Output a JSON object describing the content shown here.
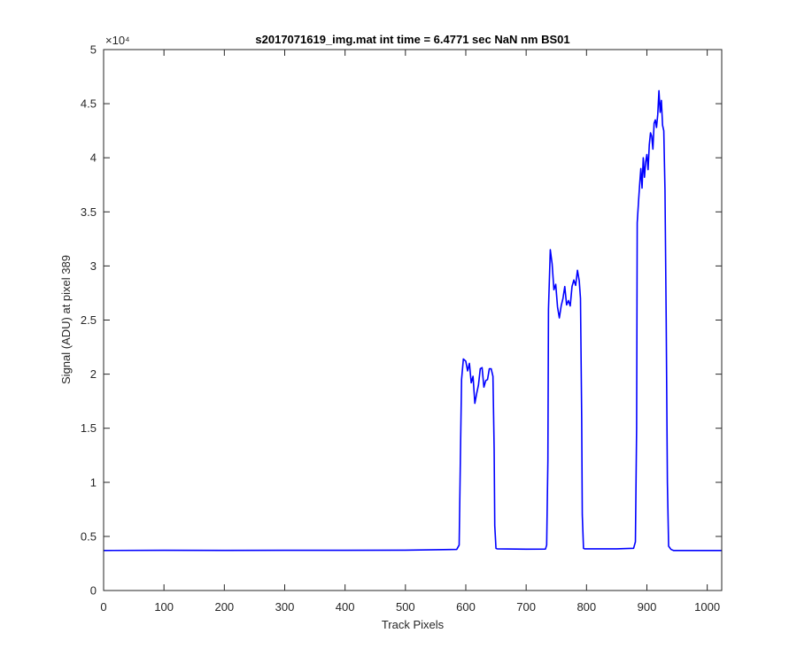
{
  "chart_data": {
    "type": "line",
    "title": "s2017071619_img.mat int time = 6.4771 sec  NaN nm BS01",
    "xlabel": "Track Pixels",
    "ylabel": "Signal (ADU) at pixel 389",
    "y_exponent_label": "×10⁴",
    "xlim": [
      0,
      1024
    ],
    "ylim": [
      0,
      50000
    ],
    "x_ticks": [
      0,
      100,
      200,
      300,
      400,
      500,
      600,
      700,
      800,
      900,
      1000
    ],
    "x_tick_labels": [
      "0",
      "100",
      "200",
      "300",
      "400",
      "500",
      "600",
      "700",
      "800",
      "900",
      "1000"
    ],
    "y_ticks": [
      0,
      5000,
      10000,
      15000,
      20000,
      25000,
      30000,
      35000,
      40000,
      45000,
      50000
    ],
    "y_tick_labels": [
      "0",
      "0.5",
      "1",
      "1.5",
      "2",
      "2.5",
      "3",
      "3.5",
      "4",
      "4.5",
      "5"
    ],
    "grid": false,
    "box": true,
    "line_color": "#0000ff",
    "series": [
      {
        "x": [
          0,
          100,
          200,
          300,
          400,
          500,
          585,
          589,
          591,
          593,
          596,
          600,
          603,
          606,
          609,
          612,
          615,
          618,
          621,
          624,
          627,
          630,
          633,
          636,
          639,
          642,
          645,
          647,
          648,
          650,
          652,
          700,
          732,
          734,
          736,
          737,
          740,
          743,
          746,
          749,
          752,
          755,
          758,
          761,
          764,
          767,
          770,
          773,
          776,
          779,
          782,
          785,
          788,
          790,
          792,
          793,
          795,
          797,
          850,
          878,
          881,
          883,
          884,
          886,
          888,
          890,
          892,
          894,
          896,
          898,
          900,
          902,
          904,
          906,
          908,
          910,
          912,
          914,
          916,
          918,
          920,
          922,
          924,
          926,
          928,
          930,
          932,
          934,
          936,
          938,
          940,
          942,
          944,
          946,
          990,
          1024
        ],
        "y": [
          3700,
          3720,
          3710,
          3720,
          3720,
          3730,
          3800,
          4200,
          12000,
          19500,
          21400,
          21200,
          20300,
          21000,
          19200,
          19800,
          17300,
          18200,
          19000,
          20500,
          20600,
          18800,
          19400,
          19500,
          20500,
          20500,
          19800,
          13000,
          6000,
          3900,
          3850,
          3820,
          3830,
          4200,
          12000,
          26000,
          31500,
          30200,
          27800,
          28300,
          26200,
          25200,
          26300,
          27000,
          28100,
          26400,
          26800,
          26300,
          28100,
          28700,
          28200,
          29600,
          28600,
          27000,
          16000,
          7000,
          3900,
          3850,
          3850,
          3900,
          4500,
          15000,
          34000,
          35800,
          37500,
          39000,
          37200,
          40000,
          38200,
          39600,
          40300,
          38900,
          41200,
          42300,
          42000,
          40800,
          43200,
          43500,
          42800,
          44000,
          46200,
          44200,
          45300,
          43000,
          42500,
          37000,
          25000,
          10000,
          4100,
          3950,
          3800,
          3750,
          3700,
          3700,
          3700,
          3700
        ]
      }
    ]
  }
}
